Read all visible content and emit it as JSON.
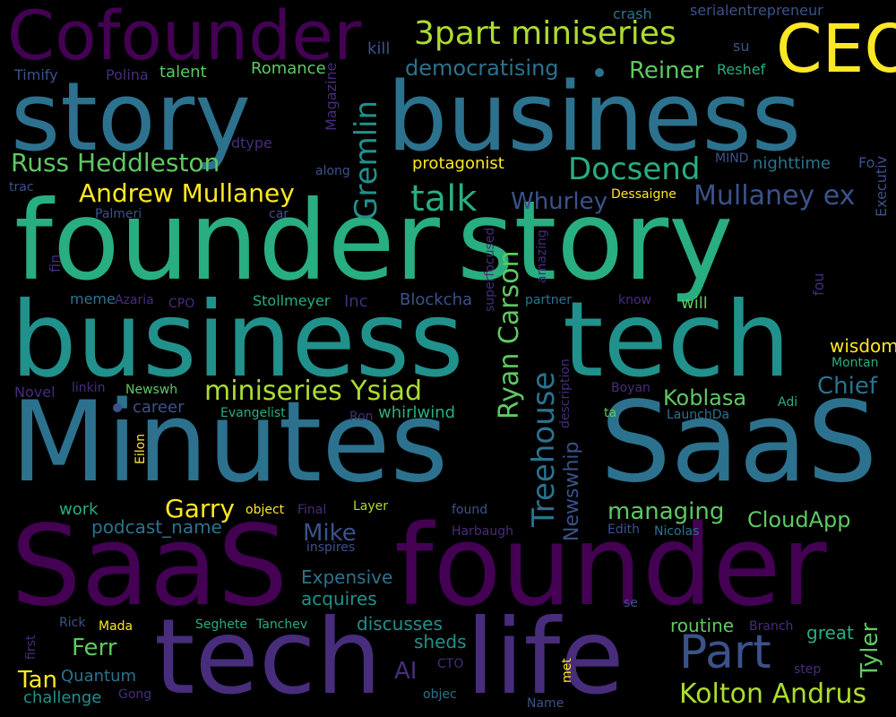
{
  "background": "#000000",
  "palette": {
    "dark_purple": "#440154",
    "purple": "#472d7b",
    "indigo": "#3b528b",
    "steel_blue": "#2c728e",
    "teal": "#21918c",
    "green_teal": "#28ae80",
    "green": "#5ec962",
    "lime": "#addc30",
    "yellow": "#fde725"
  },
  "words": {
    "cofounder": "Cofounder",
    "ceo": "CEO",
    "story_1": "story",
    "business_1": "business",
    "founder_1": "founder",
    "story_2": "story",
    "business_2": "business",
    "tech_1": "tech",
    "minutes": "Minutes",
    "saas_1": "SaaS",
    "saas_2": "SaaS",
    "founder_2": "founder",
    "tech_2": "tech",
    "life": "life",
    "part": "Part",
    "kolton_andrus": "Kolton Andrus",
    "three_part_miniseries": "3part miniseries",
    "democratising": "democratising",
    "reiner": "Reiner",
    "russ_heddleston": "Russ Heddleston",
    "andrew_mullaney": "Andrew Mullaney",
    "docsend": "Docsend",
    "talk": "talk",
    "mullaney_ex": "Mullaney ex",
    "whurley": "Whurley",
    "gremlin": "Gremlin",
    "ryan_carson": "Ryan Carson",
    "miniseries_ysiad": "miniseries Ysiad",
    "treehouse": "Treehouse",
    "koblasa": "Koblasa",
    "chief": "Chief",
    "wisdom": "wisdom",
    "garry": "Garry",
    "managing": "managing",
    "cloudapp": "CloudApp",
    "mike": "Mike",
    "tyler": "Tyler",
    "ferr": "Ferr",
    "tan": "Tan",
    "ai": "AI",
    "newswhip": "Newswhip",
    "talent": "talent",
    "romance": "Romance",
    "protagonist": "protagonist",
    "will": "will",
    "nighttime": "nighttime",
    "work": "work",
    "whirlwind": "whirlwind",
    "acquires": "acquires",
    "great": "great",
    "routine": "routine",
    "sheds": "sheds",
    "challenge": "challenge",
    "podcast_name": "podcast_name",
    "expensive": "Expensive",
    "discusses": "discusses",
    "kill": "kill",
    "su": "su",
    "crash": "crash",
    "serialentrepreneur": "serialentrepreneur",
    "timify": "Timify",
    "polina": "Polina",
    "reshef": "Reshef",
    "magazine": "Magazine",
    "dtype": "dtype",
    "along": "along",
    "mind": "MIND",
    "fo": "Fo",
    "executiv": "Executiv",
    "trac": "trac",
    "palmeri": "Palmeri",
    "car": "car",
    "dessaigne": "Dessaigne",
    "fin": "fin",
    "superfocused": "superfocused",
    "amazing": "amazing",
    "meme": "meme",
    "azaria": "Azaria",
    "cpo": "CPO",
    "stollmeyer": "Stollmeyer",
    "inc": "Inc",
    "blockcha": "Blockcha",
    "partner": "partner",
    "know": "know",
    "fou": "fou",
    "montan": "Montan",
    "novel": "Novel",
    "linkin": "linkin",
    "newswh": "Newswh",
    "description": "description",
    "boyan": "Boyan",
    "career": "career",
    "evangelist": "Evangelist",
    "ron": "Ron",
    "ta": "ta",
    "adi": "Adi",
    "launchda": "LaunchDa",
    "eilon": "Eilon",
    "object": "object",
    "final": "Final",
    "layer": "Layer",
    "found": "found",
    "harbaugh": "Harbaugh",
    "edith": "Edith",
    "nicolas": "Nicolas",
    "inspires": "inspires",
    "first": "first",
    "rick": "Rick",
    "mada": "Mada",
    "seghete": "Seghete",
    "tanchev": "Tanchev",
    "se": "se",
    "branch": "Branch",
    "cto": "CTO",
    "step": "step",
    "met": "met",
    "quantum": "Quantum",
    "gong": "Gong",
    "objec": "objec",
    "name": "Name"
  }
}
